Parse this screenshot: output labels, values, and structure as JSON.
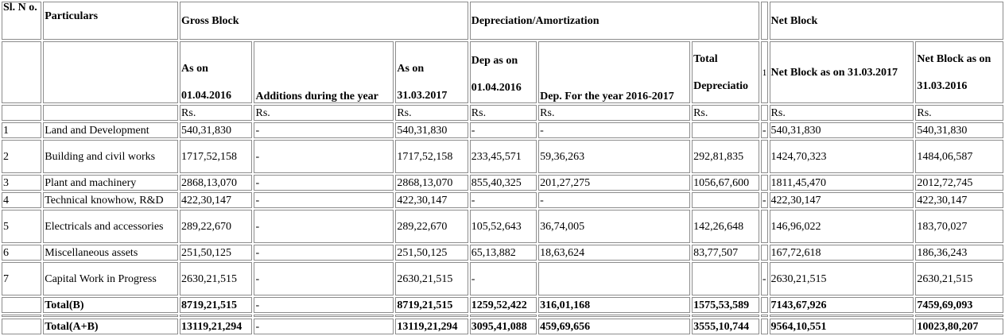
{
  "header": {
    "sl_no": "Sl. N o.",
    "particulars": "Particulars",
    "gross_block": "Gross Block",
    "depreciation": "Depreciation/Amortization",
    "net_block": "Net Block",
    "as_on_label": "As on",
    "as_on_start_date": "01.04.2016",
    "additions": "Additions during the year",
    "as_on_end_date": "31.03.2017",
    "dep_as_on_label": "Dep as on",
    "dep_as_on_date": "01.04.2016",
    "dep_for_year": "Dep. For the year 2016-2017",
    "total_dep_line1": "Total",
    "total_dep_line2": "Depreciatio",
    "mid_marker": "1",
    "net_block_2017": "Net Block as on 31.03.2017",
    "net_block_2016_label": "Net Block as on",
    "net_block_2016_date": "31.03.2016",
    "currency": "Rs."
  },
  "rows": [
    {
      "sl": "1",
      "particulars": "Land and Development",
      "gross_open": "540,31,830",
      "additions": "-",
      "gross_close": "540,31,830",
      "dep_open": "-",
      "dep_year": "-",
      "total_dep": "",
      "mid": "-",
      "net_2017": "540,31,830",
      "net_2016": "540,31,830"
    },
    {
      "sl": "2",
      "particulars": "Building and civil works",
      "gross_open": "1717,52,158",
      "additions": "-",
      "gross_close": "1717,52,158",
      "dep_open": "233,45,571",
      "dep_year": "59,36,263",
      "total_dep": "292,81,835",
      "mid": "",
      "net_2017": "1424,70,323",
      "net_2016": "1484,06,587"
    },
    {
      "sl": "3",
      "particulars": "Plant and machinery",
      "gross_open": "2868,13,070",
      "additions": "-",
      "gross_close": "2868,13,070",
      "dep_open": "855,40,325",
      "dep_year": "201,27,275",
      "total_dep": "1056,67,600",
      "mid": "",
      "net_2017": "1811,45,470",
      "net_2016": "2012,72,745"
    },
    {
      "sl": "4",
      "particulars": "Technical knowhow, R&D",
      "gross_open": "422,30,147",
      "additions": "-",
      "gross_close": "422,30,147",
      "dep_open": "-",
      "dep_year": "-",
      "total_dep": "",
      "mid": "-",
      "net_2017": "422,30,147",
      "net_2016": "422,30,147"
    },
    {
      "sl": "5",
      "particulars": "Electricals and accessories",
      "gross_open": "289,22,670",
      "additions": "-",
      "gross_close": "289,22,670",
      "dep_open": "105,52,643",
      "dep_year": "36,74,005",
      "total_dep": "142,26,648",
      "mid": "",
      "net_2017": "146,96,022",
      "net_2016": "183,70,027"
    },
    {
      "sl": "6",
      "particulars": "Miscellaneous assets",
      "gross_open": "251,50,125",
      "additions": "-",
      "gross_close": "251,50,125",
      "dep_open": "65,13,882",
      "dep_year": "18,63,624",
      "total_dep": "83,77,507",
      "mid": "",
      "net_2017": "167,72,618",
      "net_2016": "186,36,243"
    },
    {
      "sl": "7",
      "particulars": "Capital Work in Progress",
      "gross_open": "2630,21,515",
      "additions": "-",
      "gross_close": "2630,21,515",
      "dep_open": "-",
      "dep_year": "",
      "total_dep": "",
      "mid": "-",
      "net_2017": "2630,21,515",
      "net_2016": "2630,21,515"
    }
  ],
  "total_b": {
    "label": "Total(B)",
    "gross_open": "8719,21,515",
    "additions": "-",
    "gross_close": "8719,21,515",
    "dep_open": "1259,52,422",
    "dep_year": "316,01,168",
    "total_dep": "1575,53,589",
    "net_2017": "7143,67,926",
    "net_2016": "7459,69,093"
  },
  "total_ab": {
    "label": "Total(A+B)",
    "gross_open": "13119,21,294",
    "additions": "-",
    "gross_close": "13119,21,294",
    "dep_open": "3095,41,088",
    "dep_year": "459,69,656",
    "total_dep": "3555,10,744",
    "net_2017": "9564,10,551",
    "net_2016": "10023,80,207"
  }
}
